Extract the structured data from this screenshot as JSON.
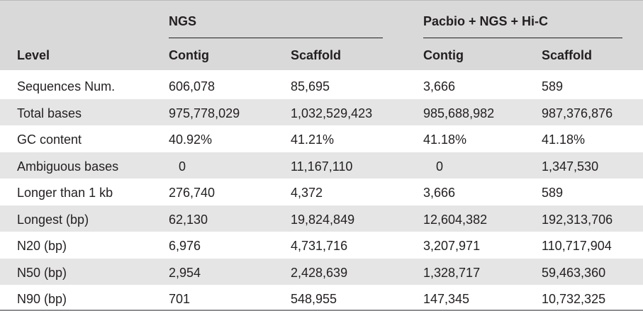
{
  "table": {
    "group_headers": [
      "NGS",
      "Pacbio + NGS + Hi-C"
    ],
    "column_headers": [
      "Level",
      "Contig",
      "Scaffold",
      "Contig",
      "Scaffold"
    ],
    "rows": [
      [
        "Sequences Num.",
        "606,078",
        "85,695",
        "3,666",
        "589"
      ],
      [
        "Total bases",
        "975,778,029",
        "1,032,529,423",
        "985,688,982",
        "987,376,876"
      ],
      [
        "GC content",
        "40.92%",
        "41.21%",
        "41.18%",
        "41.18%"
      ],
      [
        "Ambiguous bases",
        "0",
        "11,167,110",
        "0",
        "1,347,530"
      ],
      [
        "Longer than 1 kb",
        "276,740",
        "4,372",
        "3,666",
        "589"
      ],
      [
        "Longest (bp)",
        "62,130",
        "19,824,849",
        "12,604,382",
        "192,313,706"
      ],
      [
        "N20 (bp)",
        "6,976",
        "4,731,716",
        "3,207,971",
        "110,717,904"
      ],
      [
        "N50 (bp)",
        "2,954",
        "2,428,639",
        "1,328,717",
        "59,463,360"
      ],
      [
        "N90 (bp)",
        "701",
        "548,955",
        "147,345",
        "10,732,325"
      ]
    ]
  }
}
